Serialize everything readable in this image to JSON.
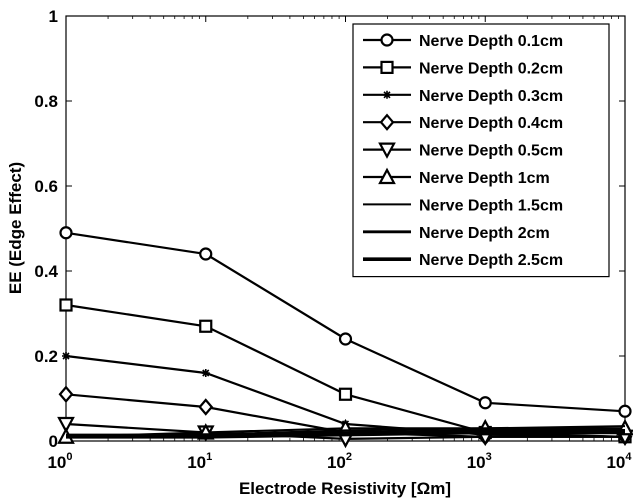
{
  "chart_data": {
    "type": "line",
    "title": "",
    "xlabel_main": "Electrode Resistivity [",
    "xlabel_unit": "Ωm]",
    "ylabel": "EE (Edge Effect)",
    "xscale": "log",
    "x": [
      1,
      10,
      100,
      1000,
      10000
    ],
    "x_tick_labels": [
      {
        "base": "10",
        "exp": "0"
      },
      {
        "base": "10",
        "exp": "1"
      },
      {
        "base": "10",
        "exp": "2"
      },
      {
        "base": "10",
        "exp": "3"
      },
      {
        "base": "10",
        "exp": "4"
      }
    ],
    "ylim": [
      0,
      1
    ],
    "y_ticks": [
      0,
      0.2,
      0.4,
      0.6,
      0.8,
      1
    ],
    "y_tick_labels": [
      "0",
      "0.2",
      "0.4",
      "0.6",
      "0.8",
      "1"
    ],
    "grid": false,
    "legend_position": "top-right",
    "series": [
      {
        "name": "Nerve Depth 0.1cm",
        "marker": "circle",
        "values": [
          0.49,
          0.44,
          0.24,
          0.09,
          0.07
        ]
      },
      {
        "name": "Nerve Depth 0.2cm",
        "marker": "square",
        "values": [
          0.32,
          0.27,
          0.11,
          0.02,
          0.01
        ]
      },
      {
        "name": "Nerve Depth 0.3cm",
        "marker": "star",
        "values": [
          0.2,
          0.16,
          0.04,
          0.015,
          0.01
        ]
      },
      {
        "name": "Nerve Depth 0.4cm",
        "marker": "diamond",
        "values": [
          0.11,
          0.08,
          0.02,
          0.01,
          0.01
        ]
      },
      {
        "name": "Nerve Depth 0.5cm",
        "marker": "triangle-down",
        "values": [
          0.04,
          0.02,
          0.005,
          0.01,
          0.01
        ]
      },
      {
        "name": "Nerve Depth 1cm",
        "marker": "triangle-up",
        "values": [
          0.01,
          0.02,
          0.03,
          0.03,
          0.03
        ]
      },
      {
        "name": "Nerve Depth 1.5cm",
        "marker": "none",
        "values": [
          0.015,
          0.015,
          0.025,
          0.03,
          0.035
        ]
      },
      {
        "name": "Nerve Depth 2cm",
        "marker": "none",
        "values": [
          0.01,
          0.015,
          0.02,
          0.025,
          0.025
        ]
      },
      {
        "name": "Nerve Depth 2.5cm",
        "marker": "none",
        "values": [
          0.01,
          0.01,
          0.015,
          0.02,
          0.02
        ]
      }
    ]
  }
}
